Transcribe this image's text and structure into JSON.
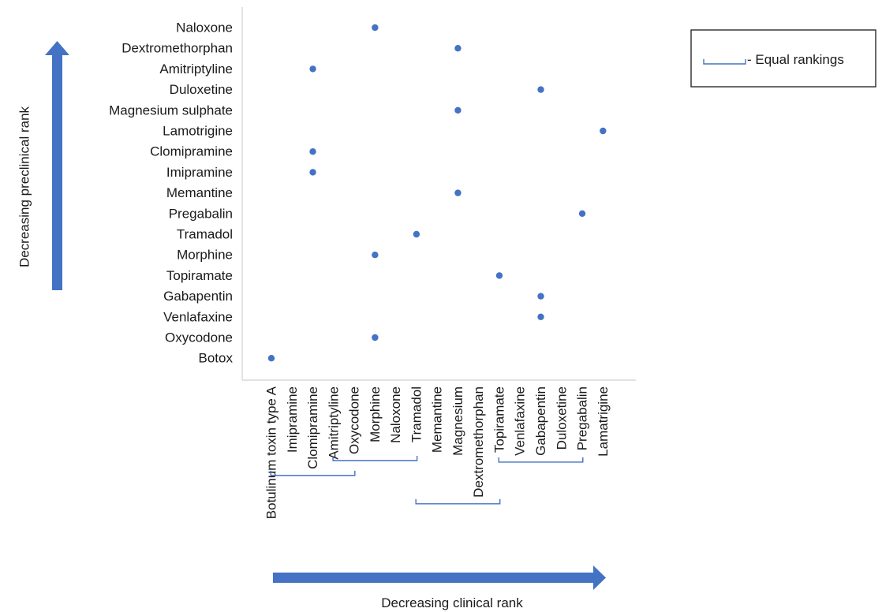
{
  "chart_data": {
    "type": "scatter",
    "xlabel": "Decreasing clinical rank",
    "ylabel": "Decreasing preclinical rank",
    "x_categories": [
      "Botulinum toxin type A",
      "Imipramine",
      "Clomipramine",
      "Amitriptyline",
      "Oxycodone",
      "Morphine",
      "Naloxone",
      "Tramadol",
      "Memantine",
      "Magnesium",
      "Dextromethorphan",
      "Topiramate",
      "Venlafaxine",
      "Gabapentin",
      "Duloxetine",
      "Pregabalin",
      "Lamatrigine"
    ],
    "y_categories": [
      "Botox",
      "Oxycodone",
      "Venlafaxine",
      "Gabapentin",
      "Topiramate",
      "Morphine",
      "Tramadol",
      "Pregabalin",
      "Memantine",
      "Imipramine",
      "Clomipramine",
      "Lamotrigine",
      "Magnesium sulphate",
      "Duloxetine",
      "Amitriptyline",
      "Dextromethorphan",
      "Naloxone"
    ],
    "points": [
      {
        "y": "Naloxone",
        "x": "Morphine"
      },
      {
        "y": "Dextromethorphan",
        "x": "Magnesium"
      },
      {
        "y": "Amitriptyline",
        "x": "Clomipramine"
      },
      {
        "y": "Duloxetine",
        "x": "Gabapentin"
      },
      {
        "y": "Magnesium sulphate",
        "x": "Magnesium"
      },
      {
        "y": "Lamotrigine",
        "x": "Lamatrigine"
      },
      {
        "y": "Clomipramine",
        "x": "Clomipramine"
      },
      {
        "y": "Imipramine",
        "x": "Clomipramine"
      },
      {
        "y": "Memantine",
        "x": "Magnesium"
      },
      {
        "y": "Pregabalin",
        "x": "Pregabalin"
      },
      {
        "y": "Tramadol",
        "x": "Tramadol"
      },
      {
        "y": "Morphine",
        "x": "Morphine"
      },
      {
        "y": "Topiramate",
        "x": "Topiramate"
      },
      {
        "y": "Gabapentin",
        "x": "Gabapentin"
      },
      {
        "y": "Venlafaxine",
        "x": "Gabapentin"
      },
      {
        "y": "Oxycodone",
        "x": "Morphine"
      },
      {
        "y": "Botox",
        "x": "Botulinum toxin type A"
      }
    ],
    "equal_ranking_groups": [
      [
        "Imipramine",
        "Clomipramine",
        "Amitriptyline"
      ],
      [
        "Oxycodone",
        "Morphine",
        "Naloxone"
      ],
      [
        "Memantine",
        "Magnesium",
        "Dextromethorphan"
      ],
      [
        "Venlafaxine",
        "Gabapentin",
        "Duloxetine"
      ]
    ],
    "legend": {
      "label": "- Equal rankings",
      "position": "top-right"
    },
    "grid": false,
    "colors": {
      "marker": "#4472c4",
      "arrow": "#4472c4",
      "bracket": "#4472c4",
      "axis": "#d0d0d0"
    }
  }
}
